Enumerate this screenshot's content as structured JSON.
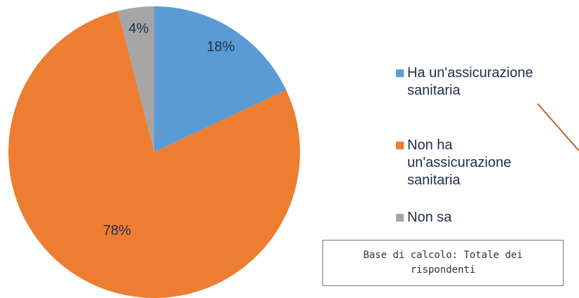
{
  "chart_data": {
    "type": "pie",
    "categories": [
      "Ha un'assicurazione sanitaria",
      "Non ha un'assicurazione sanitaria",
      "Non sa"
    ],
    "values": [
      18,
      78,
      4
    ],
    "value_labels": [
      "18%",
      "78%",
      "4%"
    ],
    "colors": [
      "#5b9bd5",
      "#ed7d31",
      "#a5a5a5"
    ],
    "legend": "right",
    "note": "Base di calcolo: Totale dei rispondenti"
  }
}
